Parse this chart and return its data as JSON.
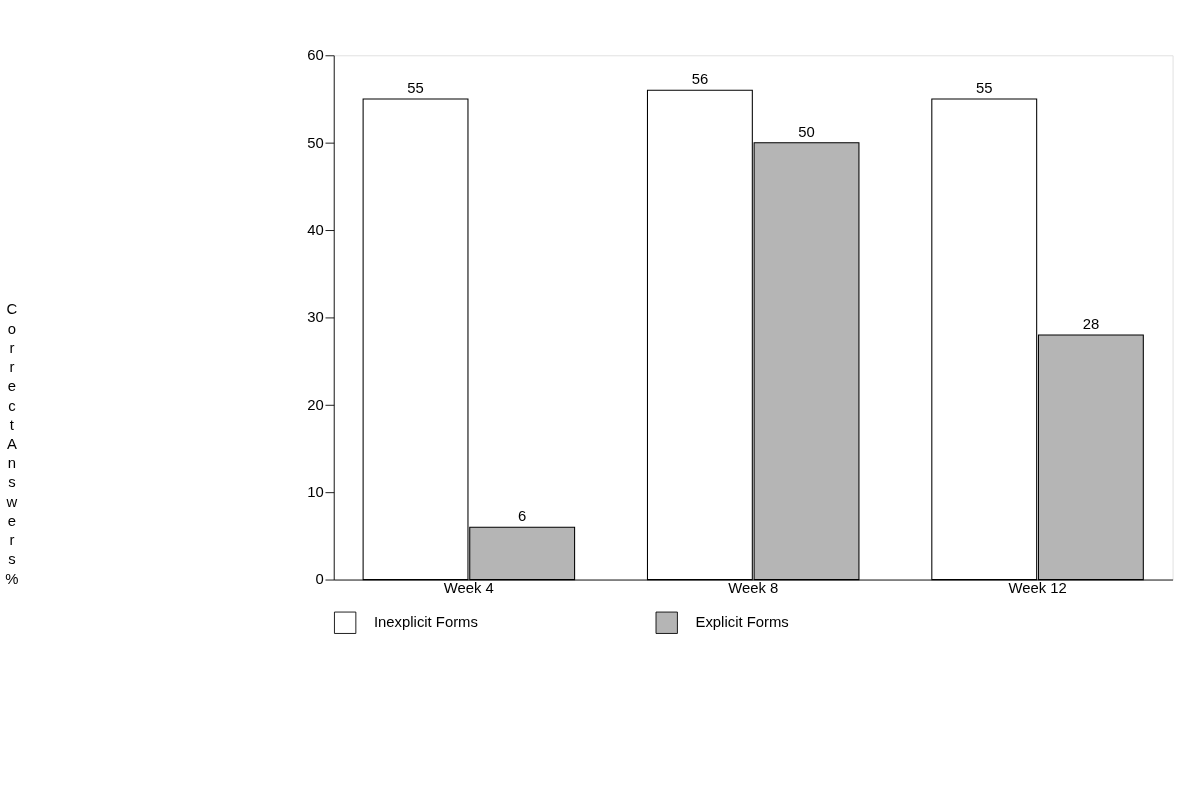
{
  "chart_data": {
    "type": "bar",
    "ylabel": "Correct Answers %",
    "categories": [
      "Week 4",
      "Week 8",
      "Week 12"
    ],
    "series": [
      {
        "name": "Inexplicit Forms",
        "color": "#ffffff",
        "values": [
          55,
          56,
          55
        ]
      },
      {
        "name": "Explicit Forms",
        "color": "#b5b5b5",
        "values": [
          6,
          50,
          28
        ]
      }
    ],
    "ylim": [
      0,
      60
    ],
    "yticks": [
      0,
      10,
      20,
      30,
      40,
      50,
      60
    ],
    "grid": false,
    "legend": "bottom",
    "data_labels": true
  }
}
